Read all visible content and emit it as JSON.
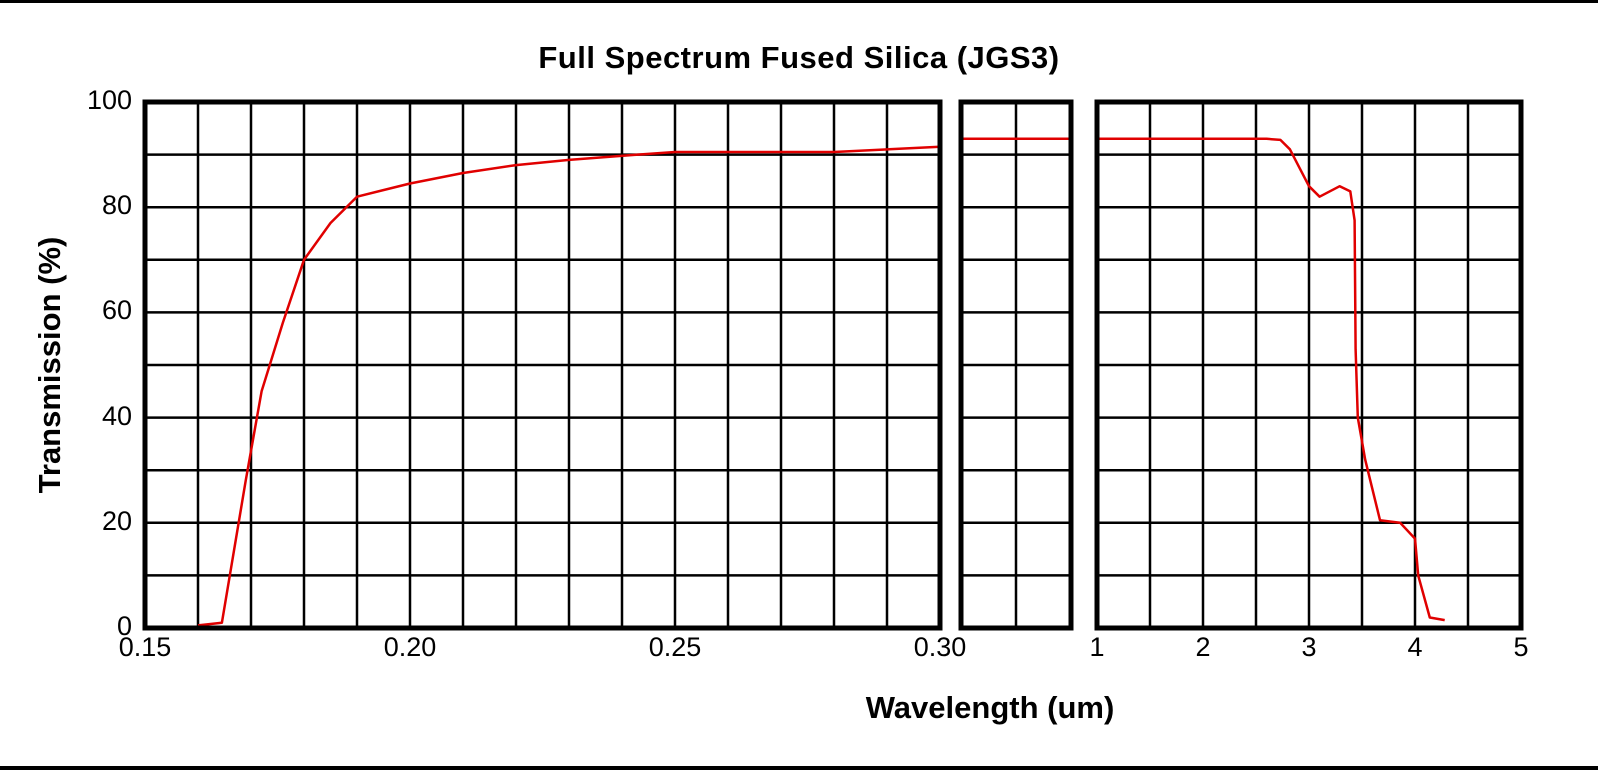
{
  "chart_data": {
    "type": "line",
    "title": "Full Spectrum Fused Silica (JGS3)",
    "xlabel": "Wavelength (um)",
    "ylabel": "Transmission (%)",
    "ylim": [
      0,
      100
    ],
    "y_ticks": [
      "0",
      "20",
      "40",
      "60",
      "80",
      "100"
    ],
    "grid": true,
    "legend": null,
    "line_color": "#e00000",
    "panels": [
      {
        "name": "uv",
        "xlim": [
          0.15,
          0.3
        ],
        "x_tick_labels": [
          "0.15",
          "0.20",
          "0.25",
          "0.30"
        ],
        "x_grid_step": 0.01,
        "series": [
          {
            "name": "JGS3 transmission",
            "x": [
              0.16,
              0.1645,
              0.169,
              0.172,
              0.176,
              0.18,
              0.185,
              0.19,
              0.2,
              0.21,
              0.22,
              0.23,
              0.243,
              0.25,
              0.28,
              0.3
            ],
            "y": [
              0.5,
              1,
              28,
              45,
              58,
              70,
              77,
              82,
              84.5,
              86.5,
              88,
              89,
              90,
              90.5,
              90.5,
              91.5
            ]
          }
        ]
      },
      {
        "name": "visible",
        "xlim": [
          0.3,
          1.0
        ],
        "x_tick_labels": [],
        "series": [
          {
            "name": "JGS3 transmission",
            "x": [
              0.3,
              1.0
            ],
            "y": [
              93,
              93
            ]
          }
        ]
      },
      {
        "name": "ir",
        "xlim": [
          1,
          5
        ],
        "x_tick_labels": [
          "1",
          "2",
          "3",
          "4",
          "5"
        ],
        "x_grid_step": 0.5,
        "series": [
          {
            "name": "JGS3 transmission",
            "x": [
              1.0,
              2.6,
              2.73,
              2.82,
              3.0,
              3.1,
              3.29,
              3.39,
              3.43,
              3.44,
              3.46,
              3.53,
              3.67,
              3.86,
              4.0,
              4.03,
              4.14,
              4.28
            ],
            "y": [
              93,
              93,
              92.8,
              91,
              84,
              82,
              84,
              83,
              77.5,
              53,
              40,
              32,
              20.5,
              20,
              17,
              10,
              2,
              1.5
            ]
          }
        ]
      }
    ]
  }
}
